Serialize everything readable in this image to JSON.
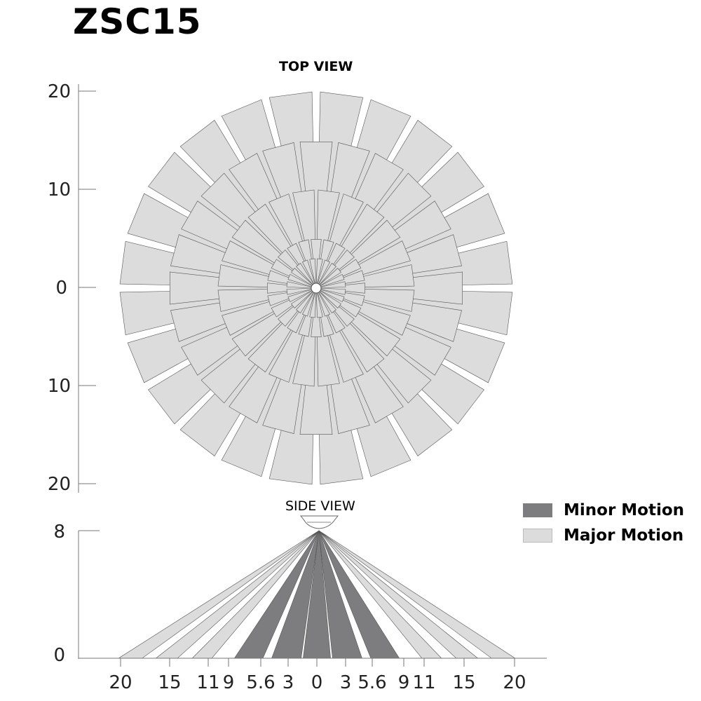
{
  "title": "ZSC15",
  "top_view": {
    "label": "TOP VIEW",
    "axis_ticks": [
      "20",
      "10",
      "0",
      "10",
      "20"
    ]
  },
  "side_view": {
    "label": "SIDE VIEW",
    "y_ticks": [
      "8",
      "0"
    ],
    "x_ticks": [
      "20",
      "15",
      "11",
      "9",
      "5.6",
      "3",
      "0",
      "3",
      "5.6",
      "9",
      "11",
      "15",
      "20"
    ]
  },
  "legend": [
    {
      "label": "Minor Motion",
      "color": "#7d7d7f"
    },
    {
      "label": "Major Motion",
      "color": "#dcdcdd"
    }
  ],
  "colors": {
    "major": "#dcdcdd",
    "minor": "#7d7d7f",
    "outline": "#555555",
    "axis": "#777777"
  },
  "chart_data": {
    "type": "diagram",
    "top_view": {
      "beam_count": 24,
      "ring_radii": [
        20,
        15,
        10,
        5,
        3
      ],
      "axis_range": [
        -20,
        20
      ]
    },
    "side_view": {
      "height": 8,
      "minor_beam_ranges": [
        [
          3,
          5.6
        ],
        [
          0,
          3
        ],
        [
          5.6,
          9
        ]
      ],
      "major_beam_ranges": [
        [
          9,
          11
        ],
        [
          11,
          15
        ],
        [
          15,
          20
        ]
      ]
    }
  }
}
